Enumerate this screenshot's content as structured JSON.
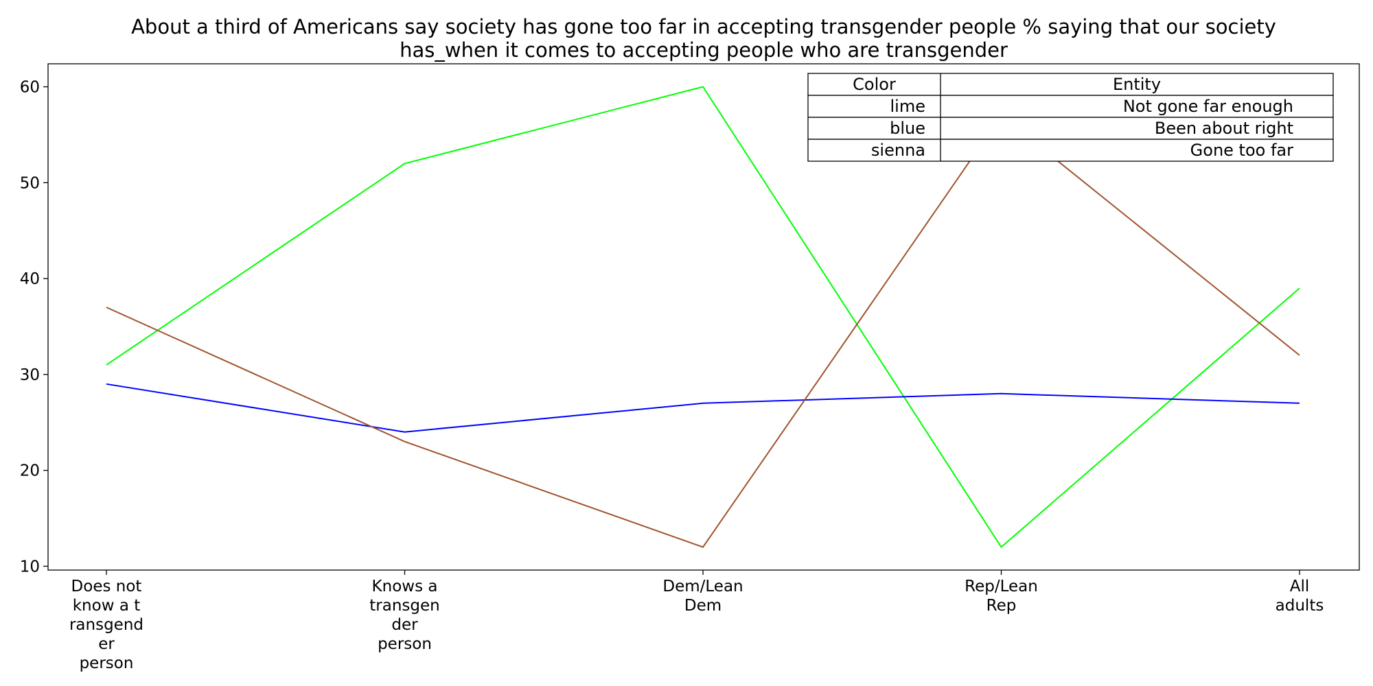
{
  "chart_data": {
    "type": "line",
    "title_lines": [
      "About a third of Americans say society has gone too far in accepting transgender people % saying that our society",
      "has_when it comes to accepting people who are transgender"
    ],
    "categories": [
      [
        "Does not",
        "know a t",
        "ransgend",
        "er",
        "person"
      ],
      [
        "Knows a",
        "transgen",
        "der",
        "person"
      ],
      [
        "Dem/Lean",
        "Dem"
      ],
      [
        "Rep/Lean",
        "Rep"
      ],
      [
        "All",
        "adults"
      ]
    ],
    "series": [
      {
        "name": "Not gone far enough",
        "color": "#00ff00",
        "values": [
          31,
          52,
          60,
          12,
          39
        ]
      },
      {
        "name": "Been about right",
        "color": "#0000ff",
        "values": [
          29,
          24,
          27,
          28,
          27
        ]
      },
      {
        "name": "Gone too far",
        "color": "#a0522d",
        "values": [
          37,
          23,
          12,
          57,
          32
        ]
      }
    ],
    "yticks": [
      10,
      20,
      30,
      40,
      50,
      60
    ],
    "ylim": [
      9.6,
      62.4
    ],
    "grid": false,
    "legend": {
      "placement": "top-right",
      "headers": [
        "Color",
        "Entity"
      ],
      "rows": [
        {
          "color_name": "lime",
          "entity": "Not gone far enough"
        },
        {
          "color_name": "blue",
          "entity": "Been about right"
        },
        {
          "color_name": "sienna",
          "entity": "Gone too far"
        }
      ]
    }
  }
}
